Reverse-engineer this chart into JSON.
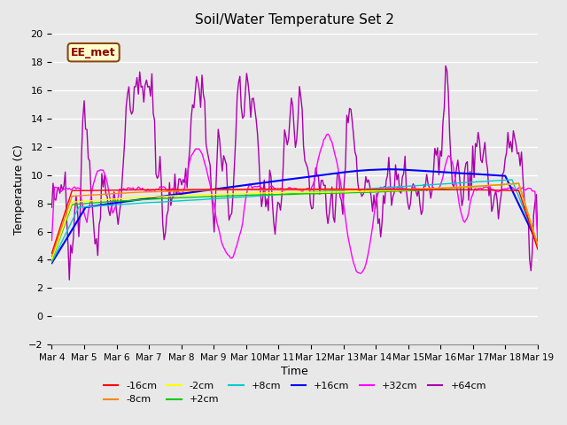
{
  "title": "Soil/Water Temperature Set 2",
  "xlabel": "Time",
  "ylabel": "Temperature (C)",
  "ylim": [
    -2,
    20
  ],
  "yticks": [
    -2,
    0,
    2,
    4,
    6,
    8,
    10,
    12,
    14,
    16,
    18,
    20
  ],
  "xlim": [
    0,
    15
  ],
  "xtick_labels": [
    "Mar 4",
    "Mar 5",
    "Mar 6",
    "Mar 7",
    "Mar 8",
    "Mar 9",
    "Mar 10",
    "Mar 11",
    "Mar 12",
    "Mar 13",
    "Mar 14",
    "Mar 15",
    "Mar 16",
    "Mar 17",
    "Mar 18",
    "Mar 19"
  ],
  "background_color": "#e8e8e8",
  "plot_bg_color": "#e8e8e8",
  "grid_color": "#ffffff",
  "annotation_text": "EE_met",
  "annotation_bg": "#ffffcc",
  "annotation_border": "#8b4513",
  "series": [
    {
      "label": "-16cm",
      "color": "#ff0000"
    },
    {
      "label": "-8cm",
      "color": "#ff8800"
    },
    {
      "label": "-2cm",
      "color": "#ffff00"
    },
    {
      "label": "+2cm",
      "color": "#00cc00"
    },
    {
      "label": "+8cm",
      "color": "#00cccc"
    },
    {
      "label": "+16cm",
      "color": "#0000ff"
    },
    {
      "label": "+32cm",
      "color": "#ff00ff"
    },
    {
      "label": "+64cm",
      "color": "#aa00aa"
    }
  ]
}
